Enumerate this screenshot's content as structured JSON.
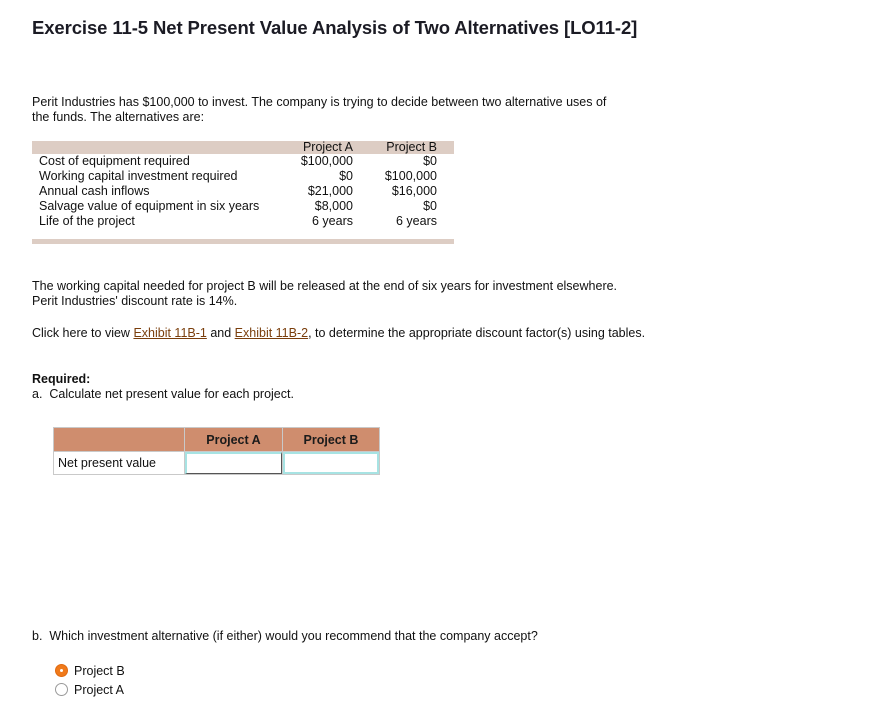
{
  "title": "Exercise 11-5 Net Present Value Analysis of Two Alternatives [LO11-2]",
  "intro": "Perit Industries has $100,000 to invest. The company is trying to decide between two alternative uses of the funds. The alternatives are:",
  "data_table": {
    "headers": [
      "",
      "Project A",
      "Project B"
    ],
    "rows": [
      {
        "label": "Cost of equipment required",
        "a": "$100,000",
        "b": "$0"
      },
      {
        "label": "Working capital investment required",
        "a": "$0",
        "b": "$100,000"
      },
      {
        "label": "Annual cash inflows",
        "a": "$21,000",
        "b": "$16,000"
      },
      {
        "label": "Salvage value of equipment in six years",
        "a": "$8,000",
        "b": "$0"
      },
      {
        "label": "Life of the project",
        "a": "6 years",
        "b": "6 years"
      }
    ]
  },
  "working_capital_note": "The working capital needed for project B will be released at the end of six years for investment elsewhere. Perit Industries' discount rate is 14%.",
  "exhibit_text": {
    "prefix": "Click here to view ",
    "link1": "Exhibit 11B-1",
    "middle": " and ",
    "link2": "Exhibit 11B-2",
    "suffix": ", to determine the appropriate discount factor(s) using tables."
  },
  "required": {
    "heading": "Required:",
    "part_a": "a.  Calculate net present value for each project."
  },
  "npv_table": {
    "headers": [
      "",
      "Project A",
      "Project B"
    ],
    "row_label": "Net present value",
    "values": {
      "a": "",
      "b": ""
    }
  },
  "part_b": {
    "question": "b.  Which investment alternative (if either) would you recommend that the company accept?",
    "options": [
      {
        "label": "Project B",
        "selected": true
      },
      {
        "label": "Project A",
        "selected": false
      }
    ]
  },
  "colors": {
    "table_band": "#ddcdc4",
    "npv_header": "#cf8d6e",
    "link": "#7a3e0c",
    "radio_selected": "#f07a1b",
    "input_border": "#a7e3e3"
  }
}
